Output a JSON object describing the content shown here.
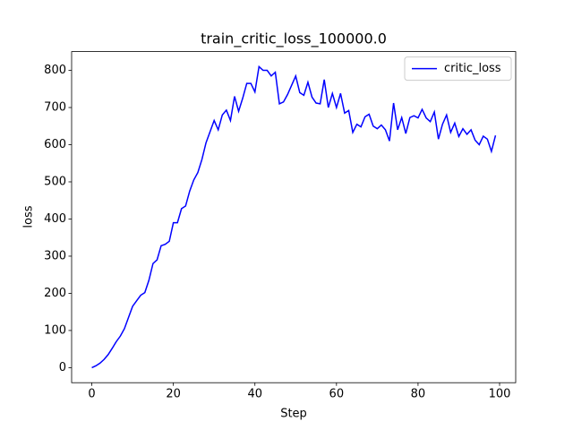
{
  "chart_data": {
    "type": "line",
    "title": "train_critic_loss_100000.0",
    "xlabel": "Step",
    "ylabel": "loss",
    "x": [
      0,
      1,
      2,
      3,
      4,
      5,
      6,
      7,
      8,
      9,
      10,
      11,
      12,
      13,
      14,
      15,
      16,
      17,
      18,
      19,
      20,
      21,
      22,
      23,
      24,
      25,
      26,
      27,
      28,
      29,
      30,
      31,
      32,
      33,
      34,
      35,
      36,
      37,
      38,
      39,
      40,
      41,
      42,
      43,
      44,
      45,
      46,
      47,
      48,
      49,
      50,
      51,
      52,
      53,
      54,
      55,
      56,
      57,
      58,
      59,
      60,
      61,
      62,
      63,
      64,
      65,
      66,
      67,
      68,
      69,
      70,
      71,
      72,
      73,
      74,
      75,
      76,
      77,
      78,
      79,
      80,
      81,
      82,
      83,
      84,
      85,
      86,
      87,
      88,
      89,
      90,
      91,
      92,
      93,
      94,
      95,
      96,
      97,
      98,
      99
    ],
    "series": [
      {
        "name": "critic_loss",
        "color": "#0000ff",
        "values": [
          0,
          5,
          12,
          22,
          35,
          52,
          70,
          85,
          105,
          135,
          165,
          180,
          195,
          202,
          235,
          280,
          290,
          328,
          332,
          340,
          390,
          390,
          428,
          435,
          475,
          505,
          525,
          560,
          605,
          635,
          665,
          640,
          680,
          693,
          665,
          730,
          690,
          725,
          765,
          765,
          742,
          810,
          800,
          800,
          785,
          795,
          710,
          715,
          735,
          760,
          785,
          740,
          733,
          768,
          728,
          712,
          710,
          775,
          700,
          738,
          700,
          738,
          685,
          692,
          633,
          655,
          648,
          675,
          682,
          650,
          643,
          653,
          640,
          610,
          712,
          640,
          673,
          630,
          673,
          678,
          672,
          695,
          672,
          662,
          688,
          615,
          655,
          680,
          633,
          658,
          622,
          643,
          628,
          640,
          612,
          600,
          623,
          615,
          582,
          625
        ]
      }
    ],
    "xlim": [
      -4.95,
      103.95
    ],
    "xticks": [
      0,
      20,
      40,
      60,
      80,
      100
    ],
    "ylim": [
      -40.5,
      850.5
    ],
    "yticks": [
      0,
      100,
      200,
      300,
      400,
      500,
      600,
      700,
      800
    ],
    "legend": "upper right"
  }
}
